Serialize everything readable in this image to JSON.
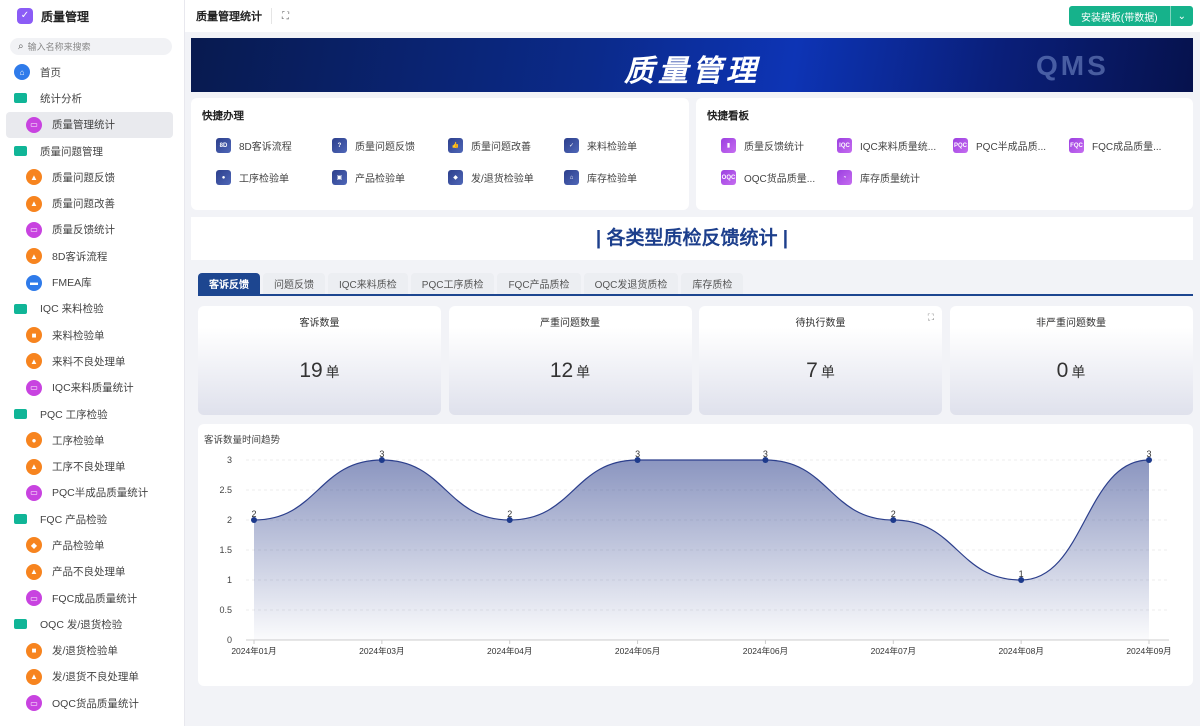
{
  "app": {
    "name": "质量管理"
  },
  "search": {
    "placeholder": "输入名称来搜索"
  },
  "sidebar": {
    "items": [
      {
        "label": "首页",
        "type": "group",
        "icon": "home-icon",
        "color": "blue"
      },
      {
        "label": "统计分析",
        "type": "folder"
      },
      {
        "label": "质量管理统计",
        "type": "child",
        "icon": "monitor-chart-icon",
        "color": "purple",
        "active": true
      },
      {
        "label": "质量问题管理",
        "type": "folder"
      },
      {
        "label": "质量问题反馈",
        "type": "child",
        "icon": "report-icon",
        "color": "orange"
      },
      {
        "label": "质量问题改善",
        "type": "child",
        "icon": "report-icon",
        "color": "orange"
      },
      {
        "label": "质量反馈统计",
        "type": "child",
        "icon": "monitor-chart-icon",
        "color": "purple"
      },
      {
        "label": "8D客诉流程",
        "type": "child",
        "icon": "report-icon",
        "color": "orange"
      },
      {
        "label": "FMEA库",
        "type": "child",
        "icon": "card-icon",
        "color": "blue"
      },
      {
        "label": "IQC 来料检验",
        "type": "folder"
      },
      {
        "label": "来料检验单",
        "type": "child",
        "icon": "truck-icon",
        "color": "orange"
      },
      {
        "label": "来料不良处理单",
        "type": "child",
        "icon": "report-icon",
        "color": "orange"
      },
      {
        "label": "IQC来料质量统计",
        "type": "child",
        "icon": "monitor-chart-icon",
        "color": "purple"
      },
      {
        "label": "PQC 工序检验",
        "type": "folder"
      },
      {
        "label": "工序检验单",
        "type": "child",
        "icon": "gear-icon",
        "color": "orange"
      },
      {
        "label": "工序不良处理单",
        "type": "child",
        "icon": "report-icon",
        "color": "orange"
      },
      {
        "label": "PQC半成品质量统计",
        "type": "child",
        "icon": "monitor-chart-icon",
        "color": "purple"
      },
      {
        "label": "FQC 产品检验",
        "type": "folder"
      },
      {
        "label": "产品检验单",
        "type": "child",
        "icon": "box-icon",
        "color": "orange"
      },
      {
        "label": "产品不良处理单",
        "type": "child",
        "icon": "report-icon",
        "color": "orange"
      },
      {
        "label": "FQC成品质量统计",
        "type": "child",
        "icon": "monitor-chart-icon",
        "color": "purple"
      },
      {
        "label": "OQC 发/退货检验",
        "type": "folder"
      },
      {
        "label": "发/退货检验单",
        "type": "child",
        "icon": "truck-icon",
        "color": "orange"
      },
      {
        "label": "发/退货不良处理单",
        "type": "child",
        "icon": "report-icon",
        "color": "orange"
      },
      {
        "label": "OQC货品质量统计",
        "type": "child",
        "icon": "monitor-chart-icon",
        "color": "purple"
      }
    ]
  },
  "topbar": {
    "title": "质量管理统计",
    "install_label": "安装模板(带数据)"
  },
  "banner": {
    "title": "质量管理",
    "watermark": "QMS"
  },
  "quick_actions": {
    "title": "快捷办理",
    "items": [
      {
        "label": "8D客诉流程",
        "glyph": "8D"
      },
      {
        "label": "质量问题反馈",
        "glyph": "?"
      },
      {
        "label": "质量问题改善",
        "glyph": "👍"
      },
      {
        "label": "来料检验单",
        "glyph": "✓"
      },
      {
        "label": "工序检验单",
        "glyph": "●"
      },
      {
        "label": "产品检验单",
        "glyph": "▣"
      },
      {
        "label": "发/退货检验单",
        "glyph": "◆"
      },
      {
        "label": "库存检验单",
        "glyph": "⌂"
      }
    ]
  },
  "quick_boards": {
    "title": "快捷看板",
    "items": [
      {
        "label": "质量反馈统计",
        "glyph": "▮"
      },
      {
        "label": "IQC来料质量统...",
        "glyph": "IQC"
      },
      {
        "label": "PQC半成品质...",
        "glyph": "PQC"
      },
      {
        "label": "FQC成品质量...",
        "glyph": "FQC"
      },
      {
        "label": "OQC货品质量...",
        "glyph": "OQC"
      },
      {
        "label": "库存质量统计",
        "glyph": "◔"
      }
    ]
  },
  "section_title": "| 各类型质检反馈统计 |",
  "tabs": [
    {
      "label": "客诉反馈",
      "active": true
    },
    {
      "label": "问题反馈"
    },
    {
      "label": "IQC来料质检"
    },
    {
      "label": "PQC工序质检"
    },
    {
      "label": "FQC产品质检"
    },
    {
      "label": "OQC发退货质检"
    },
    {
      "label": "库存质检"
    }
  ],
  "stats": [
    {
      "label": "客诉数量",
      "value": "19",
      "unit": "单"
    },
    {
      "label": "严重问题数量",
      "value": "12",
      "unit": "单"
    },
    {
      "label": "待执行数量",
      "value": "7",
      "unit": "单"
    },
    {
      "label": "非严重问题数量",
      "value": "0",
      "unit": "单"
    }
  ],
  "chart_data": {
    "type": "area",
    "title": "客诉数量时间趋势",
    "categories": [
      "2024年01月",
      "2024年03月",
      "2024年04月",
      "2024年05月",
      "2024年06月",
      "2024年07月",
      "2024年08月",
      "2024年09月"
    ],
    "values": [
      2,
      3,
      2,
      3,
      3,
      2,
      1,
      3
    ],
    "ylim": [
      0,
      3
    ],
    "yticks": [
      0,
      0.5,
      1,
      1.5,
      2,
      2.5,
      3
    ],
    "grid": true,
    "smooth": true,
    "color": "#2c3f8c"
  }
}
